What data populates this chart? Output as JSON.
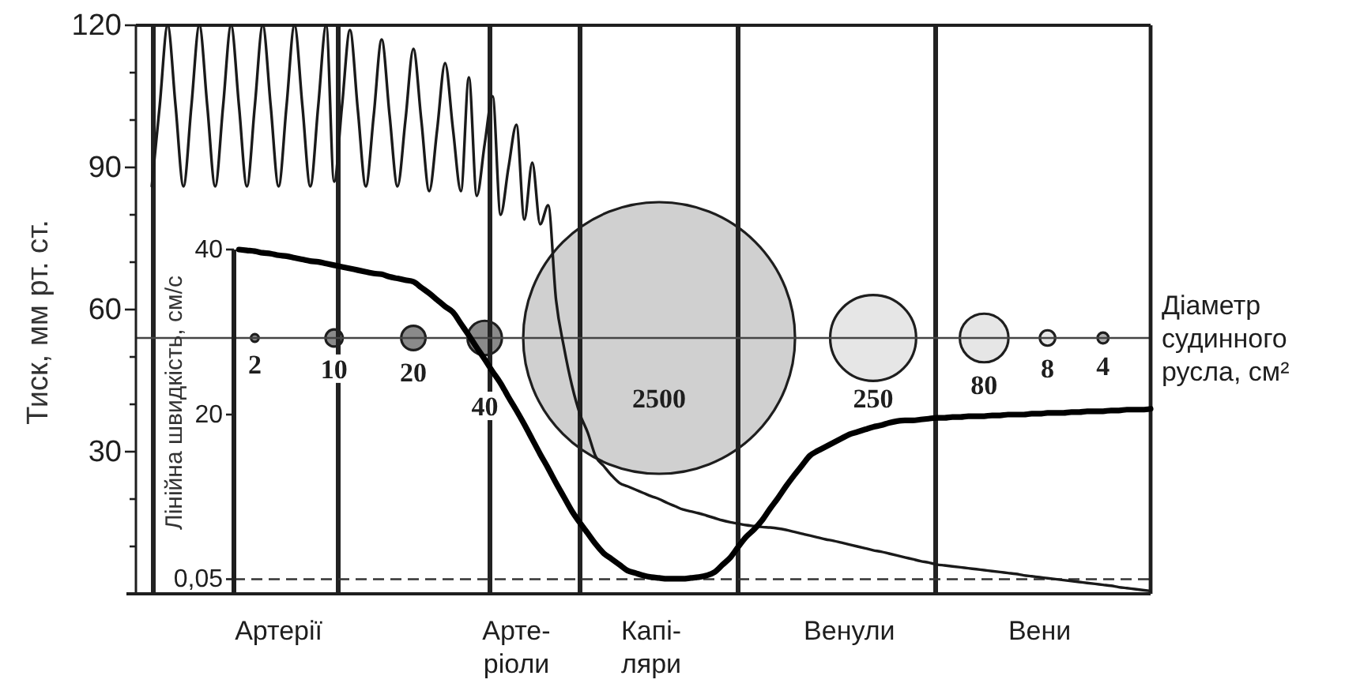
{
  "chart_data": {
    "type": "line",
    "ylabel": "Тиск, мм рт. ст.",
    "y2label": "Лінійна швидкість, см/с",
    "categories": [
      null,
      null,
      null,
      null,
      null,
      null,
      null,
      null,
      null,
      null,
      null,
      null,
      null,
      null,
      null,
      null,
      null,
      null,
      "Артерії",
      null,
      null,
      null,
      null,
      null,
      null,
      null,
      null,
      null,
      null,
      null,
      null,
      null,
      null,
      null,
      null,
      null,
      null,
      null,
      null,
      null,
      null,
      null,
      null,
      null,
      null,
      null,
      null,
      null,
      "Арте-\nріоли",
      null,
      null,
      null,
      null,
      null,
      null,
      null,
      null,
      null,
      null,
      null,
      null,
      null,
      null,
      null,
      null,
      "Капі-\nляри",
      null,
      null,
      null,
      null,
      null,
      null,
      null,
      null,
      null,
      null,
      null,
      null,
      null,
      null,
      null,
      null,
      null,
      null,
      null,
      null,
      null,
      null,
      null,
      null,
      "Венули",
      null,
      null,
      null,
      null,
      null,
      null,
      null,
      null,
      null,
      null,
      null,
      null,
      null,
      null,
      null,
      null,
      null,
      null,
      null,
      null,
      null,
      null,
      null,
      "Вени",
      null,
      null,
      null,
      null,
      null,
      null,
      null,
      null,
      null,
      null,
      null,
      null,
      null,
      null
    ],
    "ylim": [
      0,
      120
    ],
    "yticks": [
      {
        "value": 10,
        "label": null
      },
      {
        "value": 20,
        "label": null
      },
      30,
      {
        "value": 40,
        "label": null
      },
      {
        "value": 50,
        "label": null
      },
      60,
      {
        "value": 70,
        "label": null
      },
      {
        "value": 80,
        "label": null
      },
      90,
      {
        "value": 100,
        "label": null
      },
      {
        "value": 110,
        "label": null
      },
      120
    ],
    "y2lim": [
      0,
      40
    ],
    "y2ticks": [
      {
        "value": 0.05,
        "label": "0,05"
      },
      20,
      40
    ],
    "series": [
      {
        "type": "bubble",
        "axis": "y",
        "values": [
          null,
          null,
          null,
          null,
          null,
          null,
          null,
          null,
          null,
          null,
          null,
          null,
          null,
          null,
          null,
          54,
          null,
          null,
          null,
          null,
          null,
          null,
          null,
          null,
          null,
          54,
          null,
          null,
          null,
          null,
          null,
          null,
          null,
          null,
          null,
          54,
          null,
          null,
          null,
          null,
          null,
          null,
          null,
          null,
          54,
          null,
          null,
          null,
          null,
          null,
          null,
          null,
          null,
          null,
          null,
          null,
          null,
          null,
          null,
          null,
          null,
          null,
          null,
          null,
          null,
          null,
          54,
          null,
          null,
          null,
          null,
          null,
          null,
          null,
          null,
          null,
          null,
          null,
          null,
          null,
          null,
          null,
          null,
          null,
          null,
          null,
          null,
          null,
          null,
          null,
          null,
          null,
          null,
          54,
          null,
          null,
          null,
          null,
          null,
          null,
          null,
          null,
          null,
          null,
          null,
          null,
          null,
          54,
          null,
          null,
          null,
          null,
          null,
          null,
          null,
          54,
          null,
          null,
          null,
          null,
          null,
          null,
          54,
          null,
          null,
          null,
          null,
          null,
          null
        ],
        "sizes": [
          null,
          null,
          null,
          null,
          null,
          null,
          null,
          null,
          null,
          null,
          null,
          null,
          null,
          null,
          null,
          2,
          null,
          null,
          null,
          null,
          null,
          null,
          null,
          null,
          null,
          10,
          null,
          null,
          null,
          null,
          null,
          null,
          null,
          null,
          null,
          20,
          null,
          null,
          null,
          null,
          null,
          null,
          null,
          null,
          40,
          null,
          null,
          null,
          null,
          null,
          null,
          null,
          null,
          null,
          null,
          null,
          null,
          null,
          null,
          null,
          null,
          null,
          null,
          null,
          null,
          null,
          2500,
          null,
          null,
          null,
          null,
          null,
          null,
          null,
          null,
          null,
          null,
          null,
          null,
          null,
          null,
          null,
          null,
          null,
          null,
          null,
          null,
          null,
          null,
          null,
          null,
          null,
          null,
          250,
          null,
          null,
          null,
          null,
          null,
          null,
          null,
          null,
          null,
          null,
          null,
          null,
          null,
          80,
          null,
          null,
          null,
          null,
          null,
          null,
          null,
          8,
          null,
          null,
          null,
          null,
          null,
          null,
          4,
          null,
          null,
          null,
          null,
          null,
          null
        ],
        "value_labels": [
          null,
          null,
          null,
          null,
          null,
          null,
          null,
          null,
          null,
          null,
          null,
          null,
          null,
          null,
          null,
          "2",
          null,
          null,
          null,
          null,
          null,
          null,
          null,
          null,
          null,
          "10",
          null,
          null,
          null,
          null,
          null,
          null,
          null,
          null,
          null,
          "20",
          null,
          null,
          null,
          null,
          null,
          null,
          null,
          null,
          "40",
          null,
          null,
          null,
          null,
          null,
          null,
          null,
          null,
          null,
          null,
          null,
          null,
          null,
          null,
          null,
          null,
          null,
          null,
          null,
          null,
          null,
          "2500",
          null,
          null,
          null,
          null,
          null,
          null,
          null,
          null,
          null,
          null,
          null,
          null,
          null,
          null,
          null,
          null,
          null,
          null,
          null,
          null,
          null,
          null,
          null,
          null,
          null,
          null,
          "250",
          null,
          null,
          null,
          null,
          null,
          null,
          null,
          null,
          null,
          null,
          null,
          null,
          null,
          "80",
          null,
          null,
          null,
          null,
          null,
          null,
          null,
          "8",
          null,
          null,
          null,
          null,
          null,
          null,
          "4",
          null,
          null,
          null,
          null,
          null,
          null
        ],
        "colors": [
          null,
          null,
          null,
          null,
          null,
          null,
          null,
          null,
          null,
          null,
          null,
          null,
          null,
          null,
          null,
          "#8a8a8a",
          null,
          null,
          null,
          null,
          null,
          null,
          null,
          null,
          null,
          "#8a8a8a",
          null,
          null,
          null,
          null,
          null,
          null,
          null,
          null,
          null,
          "#8a8a8a",
          null,
          null,
          null,
          null,
          null,
          null,
          null,
          null,
          "#8a8a8a",
          null,
          null,
          null,
          null,
          null,
          null,
          null,
          null,
          null,
          null,
          null,
          null,
          null,
          null,
          null,
          null,
          null,
          null,
          null,
          null,
          null,
          "#d0d0d0",
          null,
          null,
          null,
          null,
          null,
          null,
          null,
          null,
          null,
          null,
          null,
          null,
          null,
          null,
          null,
          null,
          null,
          null,
          null,
          null,
          null,
          null,
          null,
          null,
          null,
          null,
          "#e6e6e6",
          null,
          null,
          null,
          null,
          null,
          null,
          null,
          null,
          null,
          null,
          null,
          null,
          null,
          "#e6e6e6",
          null,
          null,
          null,
          null,
          null,
          null,
          null,
          "#e6e6e6",
          null,
          null,
          null,
          null,
          null,
          null,
          "#b0b0b0",
          null,
          null,
          null,
          null,
          null,
          null
        ]
      },
      {
        "axis": "y",
        "color": "#1a1a1a",
        "values": [
          null,
          null,
          86,
          103,
          120,
          103,
          86,
          103,
          120,
          103,
          86,
          103,
          120,
          103,
          86,
          103,
          120,
          103,
          86,
          103,
          120,
          103,
          86,
          103,
          120,
          87,
          103,
          119,
          102,
          86,
          101,
          117,
          101,
          86,
          100,
          115,
          100,
          85,
          98,
          112,
          98,
          85,
          109,
          84,
          95,
          105,
          80,
          90,
          99,
          79,
          91,
          78,
          82,
          62,
          52,
          44,
          38,
          34,
          29,
          27,
          25,
          23.4,
          22.7,
          22,
          21.3,
          20.6,
          20,
          19.2,
          18.5,
          17.8,
          17.4,
          17,
          16.5,
          16,
          15.5,
          15.1,
          14.8,
          14.5,
          14.3,
          14.1,
          14,
          13.8,
          13.5,
          13.1,
          12.7,
          12.3,
          11.9,
          11.5,
          11.2,
          10.8,
          10.4,
          10,
          9.6,
          9.2,
          8.9,
          8.5,
          8.1,
          7.7,
          7.3,
          6.9,
          6.6,
          6.2,
          6,
          5.8,
          5.6,
          5.4,
          5.2,
          5,
          4.8,
          4.6,
          4.4,
          4.2,
          3.9,
          3.7,
          3.5,
          3.3,
          3.1,
          2.9,
          2.7,
          2.5,
          2.3,
          2.1,
          1.9,
          1.7,
          1.4,
          1.2,
          1,
          0.8,
          0.6
        ]
      },
      {
        "axis": "y2",
        "color": "#000000",
        "values": [
          null,
          null,
          null,
          null,
          null,
          null,
          null,
          null,
          null,
          null,
          null,
          null,
          null,
          40,
          39.9,
          39.8,
          39.6,
          39.5,
          39.3,
          39.2,
          39,
          38.8,
          38.6,
          38.5,
          38.3,
          38.1,
          37.9,
          37.7,
          37.5,
          37.3,
          37.1,
          37,
          36.7,
          36.5,
          36.3,
          36.1,
          35.4,
          34.7,
          33.9,
          33.1,
          32.4,
          31,
          29.6,
          28.1,
          26.7,
          25.2,
          23.8,
          22.1,
          20.5,
          18.8,
          17,
          15.2,
          13.5,
          11.7,
          10,
          8.3,
          6.9,
          5.6,
          4.3,
          3.2,
          2.5,
          1.8,
          1.1,
          0.8,
          0.5,
          0.3,
          0.2,
          0.1,
          0.1,
          0.1,
          0.2,
          0.3,
          0.5,
          0.9,
          1.8,
          2.7,
          4,
          5.2,
          6.1,
          7.2,
          8.6,
          9.9,
          11.3,
          12.6,
          13.8,
          15,
          15.6,
          16.1,
          16.6,
          17.1,
          17.6,
          17.9,
          18.2,
          18.5,
          18.7,
          19,
          19.2,
          19.3,
          19.3,
          19.4,
          19.5,
          19.6,
          19.6,
          19.7,
          19.7,
          19.8,
          19.8,
          19.8,
          19.9,
          19.9,
          20,
          20,
          20,
          20.1,
          20.1,
          20.2,
          20.2,
          20.2,
          20.3,
          20.3,
          20.4,
          20.4,
          20.4,
          20.5,
          20.5,
          20.6,
          20.6,
          20.6,
          20.7
        ]
      }
    ],
    "ref_lines": [
      {
        "axis": "y",
        "value": 54,
        "label": "Діаметр судинного русла, см²",
        "color": "#444444"
      },
      {
        "axis": "y2",
        "value": 0.05,
        "color": "#333333",
        "line_style": "dashed"
      }
    ]
  }
}
